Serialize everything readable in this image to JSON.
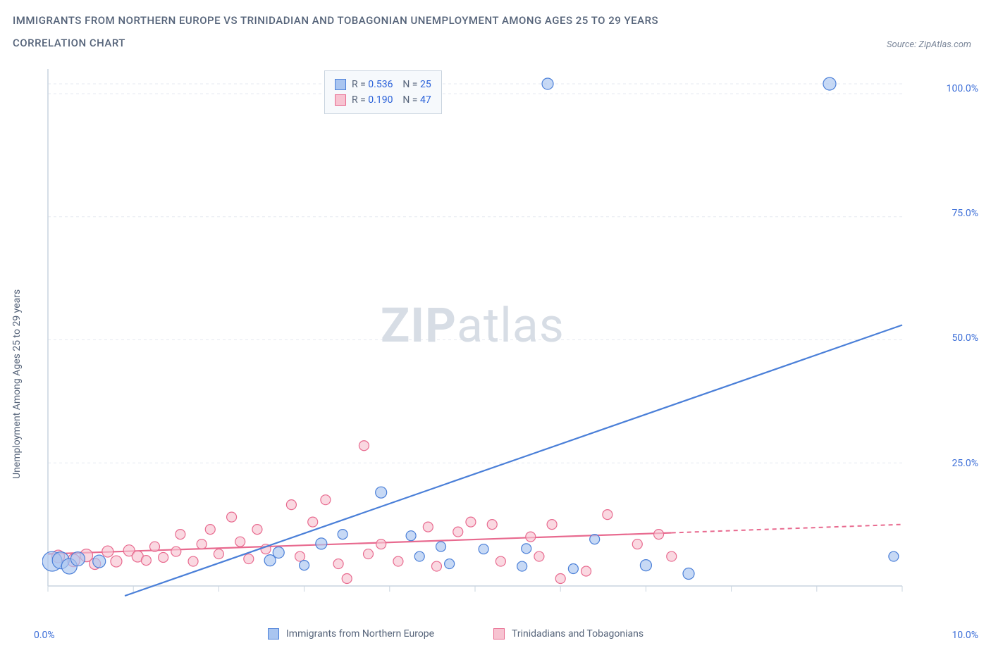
{
  "title_line1": "IMMIGRANTS FROM NORTHERN EUROPE VS TRINIDADIAN AND TOBAGONIAN UNEMPLOYMENT AMONG AGES 25 TO 29 YEARS",
  "title_line2": "CORRELATION CHART",
  "source": "Source: ZipAtlas.com",
  "y_axis_label": "Unemployment Among Ages 25 to 29 years",
  "watermark_zip": "ZIP",
  "watermark_atlas": "atlas",
  "chart": {
    "type": "scatter-correlation",
    "background_color": "#ffffff",
    "grid_color": "#e5e9f0",
    "axis_color": "#c9d4df",
    "xlim": [
      0,
      10
    ],
    "ylim": [
      0,
      105
    ],
    "x_ticks": [
      0,
      1,
      2,
      3,
      4,
      5,
      6,
      7,
      8,
      9,
      10
    ],
    "x_tick_labels": {
      "0": "0.0%",
      "10": "10.0%"
    },
    "y_ticks": [
      25,
      50,
      75,
      100
    ],
    "y_tick_labels": {
      "25": "25.0%",
      "50": "50.0%",
      "75": "75.0%",
      "100": "100.0%"
    },
    "series": [
      {
        "name": "Immigrants from Northern Europe",
        "short": "blue",
        "color_fill": "#a9c5f0",
        "color_stroke": "#4a7fd8",
        "r_value": "0.536",
        "n_value": "25",
        "trend": {
          "x1": 0.9,
          "y1": -2,
          "x2": 10.0,
          "y2": 53,
          "dash_from_x": 10.0
        },
        "points": [
          {
            "x": 0.05,
            "y": 5.0,
            "r": 14
          },
          {
            "x": 0.15,
            "y": 5.2,
            "r": 12
          },
          {
            "x": 0.25,
            "y": 4.0,
            "r": 11
          },
          {
            "x": 0.35,
            "y": 5.5,
            "r": 10
          },
          {
            "x": 0.6,
            "y": 5.0,
            "r": 9
          },
          {
            "x": 2.6,
            "y": 5.2,
            "r": 8
          },
          {
            "x": 2.7,
            "y": 6.8,
            "r": 8
          },
          {
            "x": 3.0,
            "y": 4.2,
            "r": 7
          },
          {
            "x": 3.2,
            "y": 8.6,
            "r": 8
          },
          {
            "x": 3.45,
            "y": 10.5,
            "r": 7
          },
          {
            "x": 3.9,
            "y": 19.0,
            "r": 8
          },
          {
            "x": 4.25,
            "y": 10.2,
            "r": 7
          },
          {
            "x": 4.35,
            "y": 6.0,
            "r": 7
          },
          {
            "x": 4.6,
            "y": 8.0,
            "r": 7
          },
          {
            "x": 4.7,
            "y": 4.5,
            "r": 7
          },
          {
            "x": 5.1,
            "y": 7.5,
            "r": 7
          },
          {
            "x": 5.55,
            "y": 4.0,
            "r": 7
          },
          {
            "x": 5.6,
            "y": 7.6,
            "r": 7
          },
          {
            "x": 5.85,
            "y": 102,
            "r": 8
          },
          {
            "x": 6.15,
            "y": 3.5,
            "r": 7
          },
          {
            "x": 6.4,
            "y": 9.5,
            "r": 7
          },
          {
            "x": 7.0,
            "y": 4.2,
            "r": 8
          },
          {
            "x": 7.5,
            "y": 2.5,
            "r": 8
          },
          {
            "x": 9.15,
            "y": 102,
            "r": 9
          },
          {
            "x": 9.9,
            "y": 6.0,
            "r": 7
          }
        ]
      },
      {
        "name": "Trinidadians and Tobagonians",
        "short": "pink",
        "color_fill": "#f7c3d1",
        "color_stroke": "#e86a8f",
        "r_value": "0.190",
        "n_value": "47",
        "trend": {
          "x1": 0.0,
          "y1": 6.5,
          "x2": 7.3,
          "y2": 10.8,
          "dash_from_x": 7.3,
          "dash_x2": 10.0,
          "dash_y2": 12.5
        },
        "points": [
          {
            "x": 0.12,
            "y": 6.0,
            "r": 9
          },
          {
            "x": 0.3,
            "y": 5.2,
            "r": 9
          },
          {
            "x": 0.45,
            "y": 6.2,
            "r": 9
          },
          {
            "x": 0.55,
            "y": 4.5,
            "r": 8
          },
          {
            "x": 0.7,
            "y": 7.0,
            "r": 8
          },
          {
            "x": 0.8,
            "y": 5.0,
            "r": 8
          },
          {
            "x": 0.95,
            "y": 7.2,
            "r": 8
          },
          {
            "x": 1.05,
            "y": 6.0,
            "r": 8
          },
          {
            "x": 1.15,
            "y": 5.2,
            "r": 7
          },
          {
            "x": 1.25,
            "y": 8.0,
            "r": 7
          },
          {
            "x": 1.35,
            "y": 5.8,
            "r": 7
          },
          {
            "x": 1.5,
            "y": 7.0,
            "r": 7
          },
          {
            "x": 1.55,
            "y": 10.5,
            "r": 7
          },
          {
            "x": 1.7,
            "y": 5.0,
            "r": 7
          },
          {
            "x": 1.8,
            "y": 8.5,
            "r": 7
          },
          {
            "x": 1.9,
            "y": 11.5,
            "r": 7
          },
          {
            "x": 2.0,
            "y": 6.5,
            "r": 7
          },
          {
            "x": 2.15,
            "y": 14.0,
            "r": 7
          },
          {
            "x": 2.25,
            "y": 9.0,
            "r": 7
          },
          {
            "x": 2.35,
            "y": 5.5,
            "r": 7
          },
          {
            "x": 2.45,
            "y": 11.5,
            "r": 7
          },
          {
            "x": 2.55,
            "y": 7.5,
            "r": 7
          },
          {
            "x": 2.85,
            "y": 16.5,
            "r": 7
          },
          {
            "x": 2.95,
            "y": 6.0,
            "r": 7
          },
          {
            "x": 3.1,
            "y": 13.0,
            "r": 7
          },
          {
            "x": 3.25,
            "y": 17.5,
            "r": 7
          },
          {
            "x": 3.4,
            "y": 4.5,
            "r": 7
          },
          {
            "x": 3.5,
            "y": 1.5,
            "r": 7
          },
          {
            "x": 3.7,
            "y": 28.5,
            "r": 7
          },
          {
            "x": 3.75,
            "y": 6.5,
            "r": 7
          },
          {
            "x": 3.9,
            "y": 8.5,
            "r": 7
          },
          {
            "x": 4.1,
            "y": 5.0,
            "r": 7
          },
          {
            "x": 4.45,
            "y": 12.0,
            "r": 7
          },
          {
            "x": 4.55,
            "y": 4.0,
            "r": 7
          },
          {
            "x": 4.8,
            "y": 11.0,
            "r": 7
          },
          {
            "x": 4.95,
            "y": 13.0,
            "r": 7
          },
          {
            "x": 5.2,
            "y": 12.5,
            "r": 7
          },
          {
            "x": 5.3,
            "y": 5.0,
            "r": 7
          },
          {
            "x": 5.65,
            "y": 10.0,
            "r": 7
          },
          {
            "x": 5.75,
            "y": 6.0,
            "r": 7
          },
          {
            "x": 5.9,
            "y": 12.5,
            "r": 7
          },
          {
            "x": 6.0,
            "y": 1.5,
            "r": 7
          },
          {
            "x": 6.3,
            "y": 3.0,
            "r": 7
          },
          {
            "x": 6.55,
            "y": 14.5,
            "r": 7
          },
          {
            "x": 6.9,
            "y": 8.5,
            "r": 7
          },
          {
            "x": 7.15,
            "y": 10.5,
            "r": 7
          },
          {
            "x": 7.3,
            "y": 6.0,
            "r": 7
          }
        ]
      }
    ]
  },
  "legend_box": {
    "rows": [
      {
        "swatch_fill": "#a9c5f0",
        "swatch_stroke": "#4a7fd8",
        "r_label": "R =",
        "r_val": "0.536",
        "n_label": "N =",
        "n_val": "25"
      },
      {
        "swatch_fill": "#f7c3d1",
        "swatch_stroke": "#e86a8f",
        "r_label": "R =",
        "r_val": "0.190",
        "n_label": "N =",
        "n_val": "47"
      }
    ]
  },
  "bottom_legend": [
    {
      "swatch_fill": "#a9c5f0",
      "swatch_stroke": "#4a7fd8",
      "label": "Immigrants from Northern Europe"
    },
    {
      "swatch_fill": "#f7c3d1",
      "swatch_stroke": "#e86a8f",
      "label": "Trinidadians and Tobagonians"
    }
  ]
}
